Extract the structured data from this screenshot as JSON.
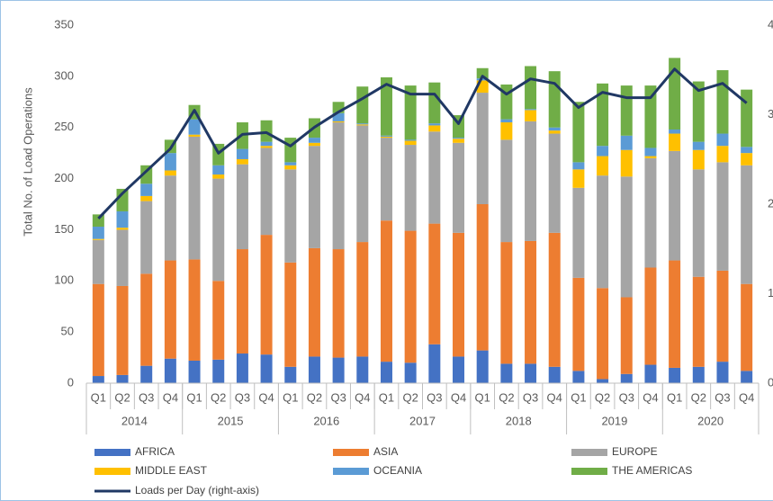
{
  "chart_data": {
    "type": "bar",
    "stacked": true,
    "y_label": "Total No. of Load Operations",
    "categories": [
      "Q1",
      "Q2",
      "Q3",
      "Q4",
      "Q1",
      "Q2",
      "Q3",
      "Q4",
      "Q1",
      "Q2",
      "Q3",
      "Q4",
      "Q1",
      "Q2",
      "Q3",
      "Q4",
      "Q1",
      "Q2",
      "Q3",
      "Q4",
      "Q1",
      "Q2",
      "Q3",
      "Q4",
      "Q1",
      "Q2",
      "Q3",
      "Q4"
    ],
    "years": [
      "2014",
      "2015",
      "2016",
      "2017",
      "2018",
      "2019",
      "2020"
    ],
    "ylim": [
      0,
      350
    ],
    "yticks": [
      0,
      50,
      100,
      150,
      200,
      250,
      300,
      350
    ],
    "y2lim": [
      0,
      4
    ],
    "y2ticks": [
      0,
      1,
      2,
      3,
      4
    ],
    "grid": false,
    "series": [
      {
        "name": "AFRICA",
        "color": "#4472c4",
        "values": [
          7,
          8,
          17,
          24,
          22,
          23,
          29,
          28,
          16,
          26,
          25,
          26,
          21,
          20,
          38,
          26,
          32,
          19,
          19,
          16,
          12,
          4,
          9,
          18,
          15,
          16,
          21,
          12
        ]
      },
      {
        "name": "ASIA",
        "color": "#ed7d31",
        "values": [
          90,
          87,
          90,
          96,
          99,
          77,
          102,
          117,
          102,
          106,
          106,
          112,
          138,
          129,
          118,
          121,
          143,
          119,
          120,
          131,
          91,
          89,
          75,
          95,
          105,
          88,
          89,
          85
        ]
      },
      {
        "name": "EUROPE",
        "color": "#a5a5a5",
        "values": [
          43,
          55,
          71,
          83,
          120,
          100,
          83,
          85,
          91,
          100,
          124,
          114,
          81,
          84,
          90,
          88,
          109,
          100,
          117,
          97,
          88,
          110,
          118,
          107,
          107,
          105,
          106,
          116
        ]
      },
      {
        "name": "MIDDLE EAST",
        "color": "#ffc000",
        "values": [
          1,
          2,
          5,
          5,
          2,
          4,
          5,
          2,
          4,
          3,
          1,
          1,
          1,
          4,
          6,
          4,
          12,
          17,
          11,
          3,
          18,
          19,
          26,
          2,
          17,
          19,
          16,
          12
        ]
      },
      {
        "name": "OCEANIA",
        "color": "#5b9bd5",
        "values": [
          12,
          16,
          12,
          17,
          15,
          9,
          10,
          4,
          3,
          5,
          8,
          1,
          1,
          1,
          2,
          1,
          2,
          3,
          1,
          3,
          7,
          10,
          14,
          8,
          4,
          8,
          12,
          6
        ]
      },
      {
        "name": "THE AMERICAS",
        "color": "#70ad47",
        "values": [
          12,
          22,
          18,
          13,
          14,
          21,
          26,
          21,
          24,
          19,
          11,
          36,
          57,
          53,
          40,
          22,
          10,
          34,
          42,
          55,
          59,
          61,
          49,
          61,
          70,
          59,
          62,
          56
        ]
      },
      {
        "name": "Loads per Day (right-axis)",
        "color": "#203864",
        "type": "line",
        "axis": "y2",
        "values": [
          1.84,
          2.12,
          2.37,
          2.62,
          3.05,
          2.57,
          2.78,
          2.8,
          2.65,
          2.86,
          3.03,
          3.18,
          3.34,
          3.23,
          3.23,
          2.9,
          3.43,
          3.23,
          3.4,
          3.35,
          3.08,
          3.25,
          3.19,
          3.19,
          3.51,
          3.27,
          3.35,
          3.13
        ]
      }
    ]
  }
}
